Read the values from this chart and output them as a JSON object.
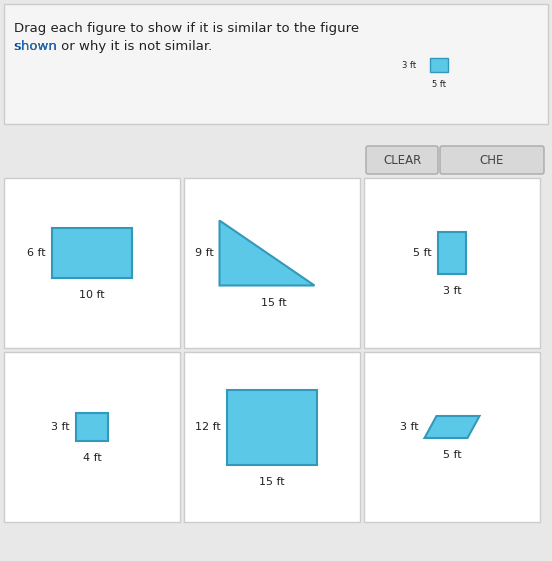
{
  "bg_color": "#e8e8e8",
  "card_color": "#ffffff",
  "shape_fill": "#5bc8e8",
  "shape_edge": "#3399bb",
  "text_color": "#222222",
  "title": "Drag each figure to show if it is similar to the figure\nshown or why it is not similar.",
  "header_bg": "#f5f5f5",
  "figures": [
    {
      "type": "rect",
      "label_side": "6 ft",
      "label_bottom": "10 ft",
      "row": 0,
      "col": 0
    },
    {
      "type": "right_triangle",
      "label_side": "9 ft",
      "label_bottom": "15 ft",
      "row": 0,
      "col": 1
    },
    {
      "type": "rect_tall",
      "label_side": "5 ft",
      "label_bottom": "3 ft",
      "row": 0,
      "col": 2
    },
    {
      "type": "rect_small",
      "label_side": "3 ft",
      "label_bottom": "4 ft",
      "row": 1,
      "col": 0
    },
    {
      "type": "rect_large",
      "label_side": "12 ft",
      "label_bottom": "15 ft",
      "row": 1,
      "col": 1
    },
    {
      "type": "parallelogram",
      "label_side": "3 ft",
      "label_bottom": "5 ft",
      "row": 1,
      "col": 2
    }
  ],
  "reference_label_side": "3 ft",
  "reference_label_bottom": "5 ft",
  "button_clear": "CLEAR",
  "button_check": "CHE"
}
